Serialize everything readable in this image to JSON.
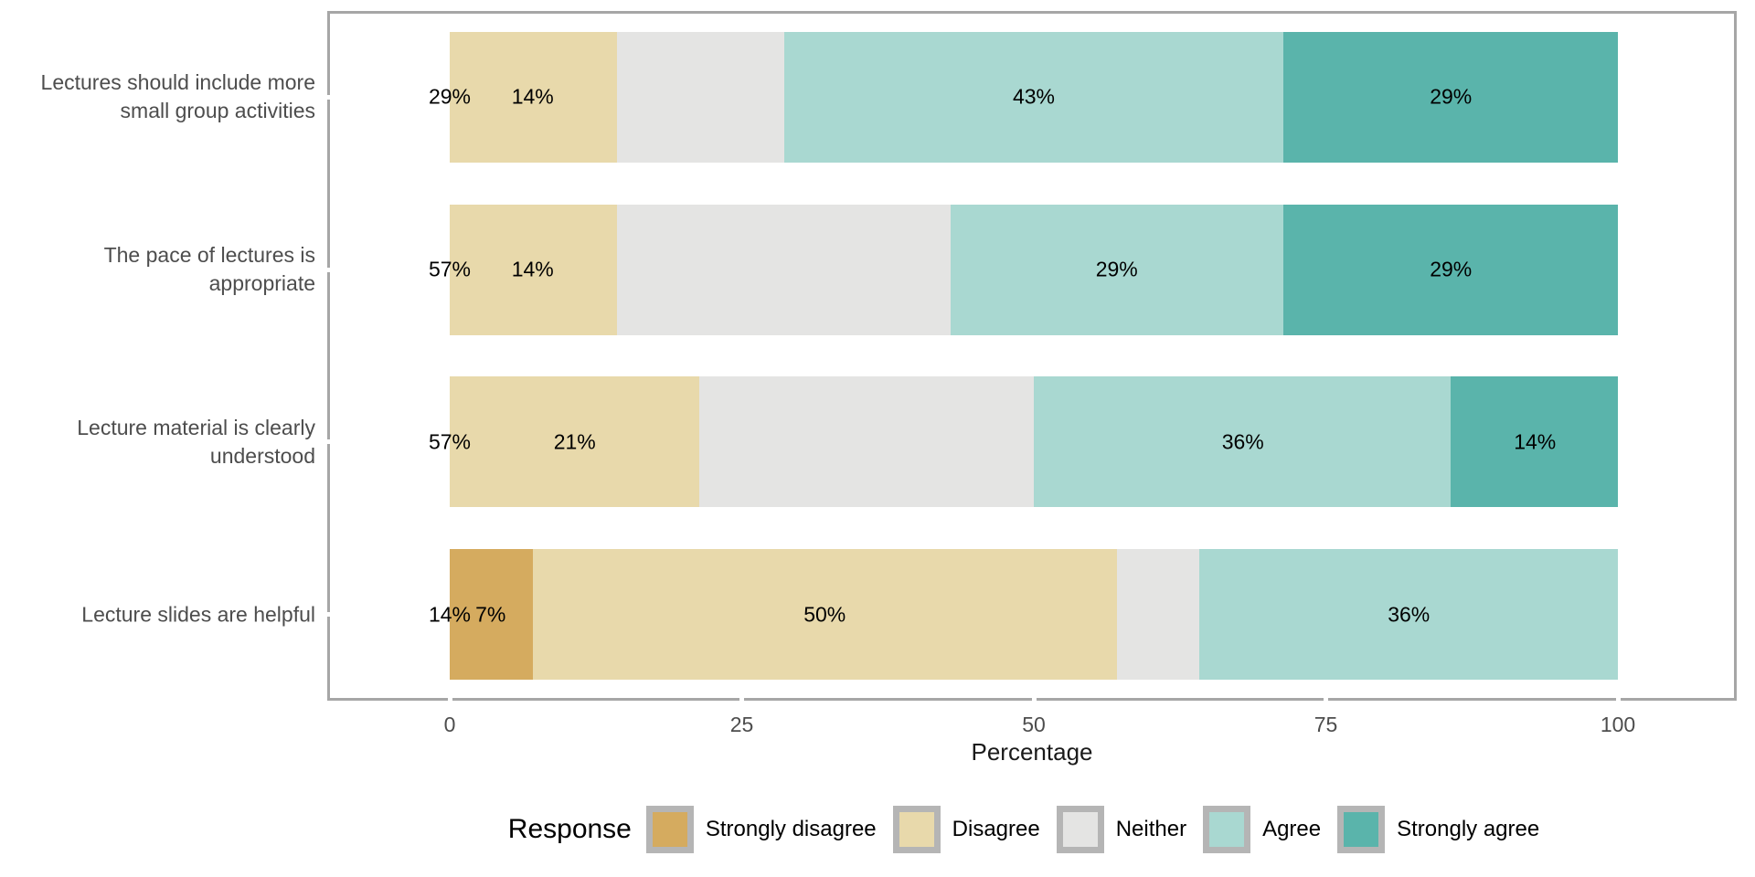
{
  "chart_data": {
    "type": "bar",
    "orientation": "horizontal",
    "stacked": true,
    "title": "",
    "xlabel": "Percentage",
    "ylabel": "",
    "xlim": [
      0,
      100
    ],
    "x_ticks": [
      {
        "value": 0,
        "label": "0"
      },
      {
        "value": 25,
        "label": "25"
      },
      {
        "value": 50,
        "label": "50"
      },
      {
        "value": 75,
        "label": "75"
      },
      {
        "value": 100,
        "label": "100"
      }
    ],
    "grid": "off",
    "legend": {
      "title": "Response",
      "position": "bottom",
      "entries": [
        {
          "label": "Strongly disagree",
          "color": "#d5ab5f"
        },
        {
          "label": "Disagree",
          "color": "#e8d9ab"
        },
        {
          "label": "Neither",
          "color": "#e4e4e3"
        },
        {
          "label": "Agree",
          "color": "#a9d8d1"
        },
        {
          "label": "Strongly agree",
          "color": "#5ab4ab"
        }
      ]
    },
    "categories": [
      {
        "label_lines": [
          "Lectures should include more",
          "small group activities"
        ]
      },
      {
        "label_lines": [
          "The pace of lectures is",
          "appropriate"
        ]
      },
      {
        "label_lines": [
          "Lecture material is clearly",
          "understood"
        ]
      },
      {
        "label_lines": [
          "Lecture slides are helpful"
        ]
      }
    ],
    "series": [
      {
        "name": "Strongly disagree",
        "color": "#d5ab5f",
        "values": [
          0,
          0,
          0,
          7.1
        ]
      },
      {
        "name": "Disagree",
        "color": "#e8d9ab",
        "values": [
          14.3,
          14.3,
          21.4,
          50.0
        ]
      },
      {
        "name": "Neither",
        "color": "#e4e4e3",
        "values": [
          14.3,
          28.6,
          28.6,
          7.1
        ]
      },
      {
        "name": "Agree",
        "color": "#a9d8d1",
        "values": [
          42.8,
          28.5,
          35.7,
          35.8
        ]
      },
      {
        "name": "Strongly agree",
        "color": "#5ab4ab",
        "values": [
          28.6,
          28.6,
          14.3,
          0
        ]
      }
    ],
    "bar_labels": [
      [
        {
          "text": "29%",
          "x": 0
        },
        {
          "text": "14%",
          "x": 7.1
        },
        {
          "text": "43%",
          "x": 50.0
        },
        {
          "text": "29%",
          "x": 85.7
        }
      ],
      [
        {
          "text": "57%",
          "x": 0
        },
        {
          "text": "14%",
          "x": 7.1
        },
        {
          "text": "29%",
          "x": 57.1
        },
        {
          "text": "29%",
          "x": 85.7
        }
      ],
      [
        {
          "text": "57%",
          "x": 0
        },
        {
          "text": "21%",
          "x": 10.7
        },
        {
          "text": "36%",
          "x": 67.9
        },
        {
          "text": "14%",
          "x": 92.9
        }
      ],
      [
        {
          "text": "14%",
          "x": 0
        },
        {
          "text": "7%",
          "x": 3.5
        },
        {
          "text": "50%",
          "x": 32.1
        },
        {
          "text": "36%",
          "x": 82.1
        }
      ]
    ]
  },
  "style": {
    "panel_border_color": "#a6a6a6",
    "axis_text_color": "#4d4d4d",
    "bar_label_color": "#000000",
    "legend_key_border_color": "#b5b5b5",
    "background": "#ffffff"
  }
}
